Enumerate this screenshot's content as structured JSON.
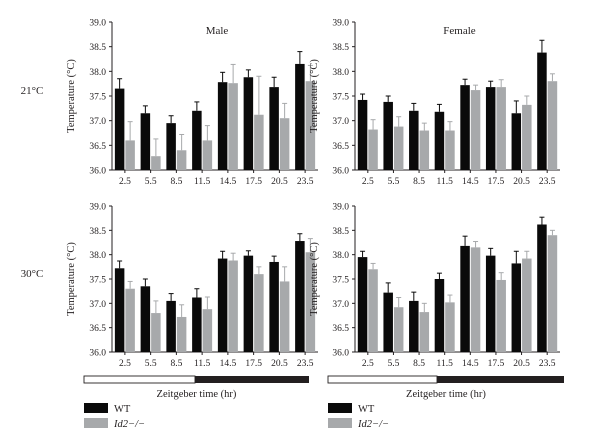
{
  "chart_data": [
    {
      "type": "bar",
      "panel": "male-21",
      "title": "Male",
      "row_label": "21°C",
      "ylabel": "Temperature (°C)",
      "ylim": [
        36.0,
        39.0
      ],
      "yticks": [
        "36.0",
        "36.5",
        "37.0",
        "37.5",
        "38.0",
        "38.5",
        "39.0"
      ],
      "categories": [
        "2.5",
        "5.5",
        "8.5",
        "11.5",
        "14.5",
        "17.5",
        "20.5",
        "23.5"
      ],
      "series": [
        {
          "name": "WT",
          "values": [
            37.65,
            37.15,
            36.95,
            37.2,
            37.78,
            37.88,
            37.68,
            38.15
          ],
          "errors": [
            0.2,
            0.15,
            0.15,
            0.18,
            0.2,
            0.15,
            0.2,
            0.25
          ]
        },
        {
          "name": "Id2−/−",
          "values": [
            36.6,
            36.28,
            36.4,
            36.6,
            37.76,
            37.12,
            37.05,
            37.8
          ],
          "errors": [
            0.38,
            0.35,
            0.32,
            0.3,
            0.38,
            0.78,
            0.3,
            0.32
          ]
        }
      ]
    },
    {
      "type": "bar",
      "panel": "female-21",
      "title": "Female",
      "row_label": "",
      "ylabel": "Temperature (°C)",
      "ylim": [
        36.0,
        39.0
      ],
      "yticks": [
        "36.0",
        "36.5",
        "37.0",
        "37.5",
        "38.0",
        "38.5",
        "39.0"
      ],
      "categories": [
        "2.5",
        "5.5",
        "8.5",
        "11.5",
        "14.5",
        "17.5",
        "20.5",
        "23.5"
      ],
      "series": [
        {
          "name": "WT",
          "values": [
            37.42,
            37.38,
            37.2,
            37.18,
            37.72,
            37.68,
            37.15,
            38.38
          ],
          "errors": [
            0.12,
            0.12,
            0.15,
            0.15,
            0.12,
            0.12,
            0.25,
            0.25
          ]
        },
        {
          "name": "Id2−/−",
          "values": [
            36.82,
            36.88,
            36.8,
            36.8,
            37.62,
            37.68,
            37.32,
            37.8
          ],
          "errors": [
            0.2,
            0.2,
            0.15,
            0.18,
            0.1,
            0.15,
            0.18,
            0.15
          ]
        }
      ]
    },
    {
      "type": "bar",
      "panel": "male-30",
      "title": "",
      "row_label": "30°C",
      "ylabel": "Temperature (°C)",
      "ylim": [
        36.0,
        39.0
      ],
      "yticks": [
        "36.0",
        "36.5",
        "37.0",
        "37.5",
        "38.0",
        "38.5",
        "39.0"
      ],
      "categories": [
        "2.5",
        "5.5",
        "8.5",
        "11.5",
        "14.5",
        "17.5",
        "20.5",
        "23.5"
      ],
      "series": [
        {
          "name": "WT",
          "values": [
            37.72,
            37.35,
            37.05,
            37.12,
            37.92,
            37.98,
            37.85,
            38.28
          ],
          "errors": [
            0.15,
            0.15,
            0.15,
            0.18,
            0.15,
            0.1,
            0.12,
            0.15
          ]
        },
        {
          "name": "Id2−/−",
          "values": [
            37.3,
            36.8,
            36.72,
            36.88,
            37.88,
            37.6,
            37.45,
            38.05
          ],
          "errors": [
            0.15,
            0.25,
            0.25,
            0.25,
            0.15,
            0.15,
            0.3,
            0.28
          ]
        }
      ]
    },
    {
      "type": "bar",
      "panel": "female-30",
      "title": "",
      "row_label": "",
      "ylabel": "Temperature (°C)",
      "ylim": [
        36.0,
        39.0
      ],
      "yticks": [
        "36.0",
        "36.5",
        "37.0",
        "37.5",
        "38.0",
        "38.5",
        "39.0"
      ],
      "categories": [
        "2.5",
        "5.5",
        "8.5",
        "11.5",
        "14.5",
        "17.5",
        "20.5",
        "23.5"
      ],
      "series": [
        {
          "name": "WT",
          "values": [
            37.95,
            37.22,
            37.05,
            37.5,
            38.18,
            37.98,
            37.82,
            38.62
          ],
          "errors": [
            0.12,
            0.2,
            0.18,
            0.12,
            0.2,
            0.15,
            0.25,
            0.15
          ]
        },
        {
          "name": "Id2−/−",
          "values": [
            37.7,
            36.92,
            36.82,
            37.02,
            38.15,
            37.48,
            37.92,
            38.4
          ],
          "errors": [
            0.12,
            0.2,
            0.18,
            0.15,
            0.12,
            0.15,
            0.15,
            0.1
          ]
        }
      ]
    }
  ],
  "xlabel": "Zeitgeber time (hr)",
  "legend": [
    {
      "name": "WT",
      "color": "#0a0a0a"
    },
    {
      "name": "Id2−/−",
      "color": "#a7a9ab"
    }
  ],
  "colors": {
    "wt": "#0a0a0a",
    "ko": "#a7a9ab"
  }
}
